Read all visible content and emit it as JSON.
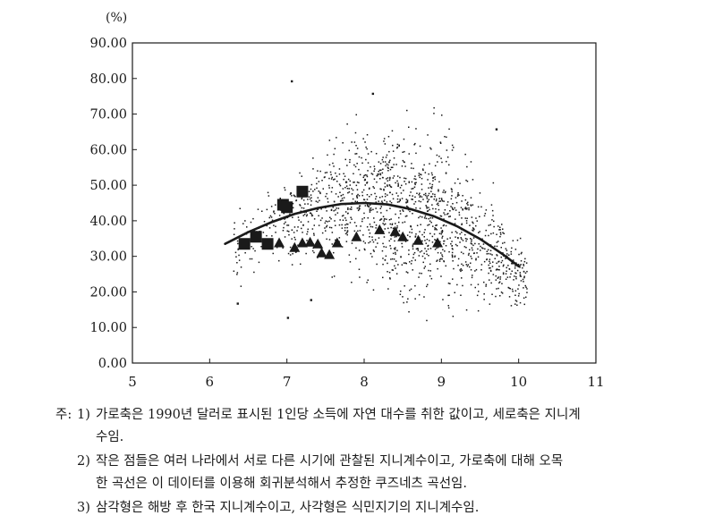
{
  "chart_data": {
    "type": "scatter",
    "unit_label": "(%)",
    "xlim": [
      5,
      11
    ],
    "ylim": [
      0,
      90
    ],
    "x_ticks": [
      "5",
      "6",
      "7",
      "8",
      "9",
      "10",
      "11"
    ],
    "y_ticks": [
      "0.00",
      "10.00",
      "20.00",
      "30.00",
      "40.00",
      "50.00",
      "60.00",
      "70.00",
      "80.00",
      "90.00"
    ],
    "grid": false,
    "kuznets_curve": {
      "x": [
        6.2,
        6.5,
        6.8,
        7.1,
        7.4,
        7.7,
        8.0,
        8.3,
        8.6,
        8.9,
        9.2,
        9.5,
        9.8,
        10.0
      ],
      "y": [
        33.5,
        36.8,
        39.6,
        41.9,
        43.6,
        44.7,
        45.0,
        44.6,
        43.3,
        41.3,
        38.5,
        34.9,
        30.5,
        27.2
      ]
    },
    "korea_triangles": {
      "x": [
        6.9,
        7.1,
        7.2,
        7.3,
        7.4,
        7.45,
        7.55,
        7.65,
        7.9,
        8.2,
        8.4,
        8.5,
        8.7,
        8.95
      ],
      "y": [
        33.8,
        32.5,
        33.8,
        34.0,
        33.5,
        31.0,
        30.5,
        33.8,
        35.5,
        37.5,
        37.0,
        35.5,
        34.5,
        33.8
      ]
    },
    "colonial_squares": {
      "x": [
        6.45,
        6.6,
        6.75,
        6.95,
        7.0,
        7.2
      ],
      "y": [
        33.5,
        35.5,
        33.5,
        44.5,
        43.8,
        48.2
      ]
    }
  },
  "notes": {
    "prefix": "주:",
    "n1_num": "1)",
    "n1_line1": "가로축은 1990년 달러로 표시된 1인당 소득에 자연 대수를 취한 값이고, 세로축은 지니계",
    "n1_line2": "수임.",
    "n2_num": "2)",
    "n2_line1": "작은 점들은 여러 나라에서 서로 다른 시기에 관찰된 지니계수이고, 가로축에 대해 오목",
    "n2_line2": "한 곡선은 이 데이터를 이용해 회귀분석해서 추정한 쿠즈네츠 곡선임.",
    "n3_num": "3)",
    "n3_line1": "삼각형은 해방 후 한국 지니계수이고, 사각형은 식민지기의 지니계수임."
  },
  "colors": {
    "ink": "#1a1a1a",
    "paper": "#ffffff"
  }
}
